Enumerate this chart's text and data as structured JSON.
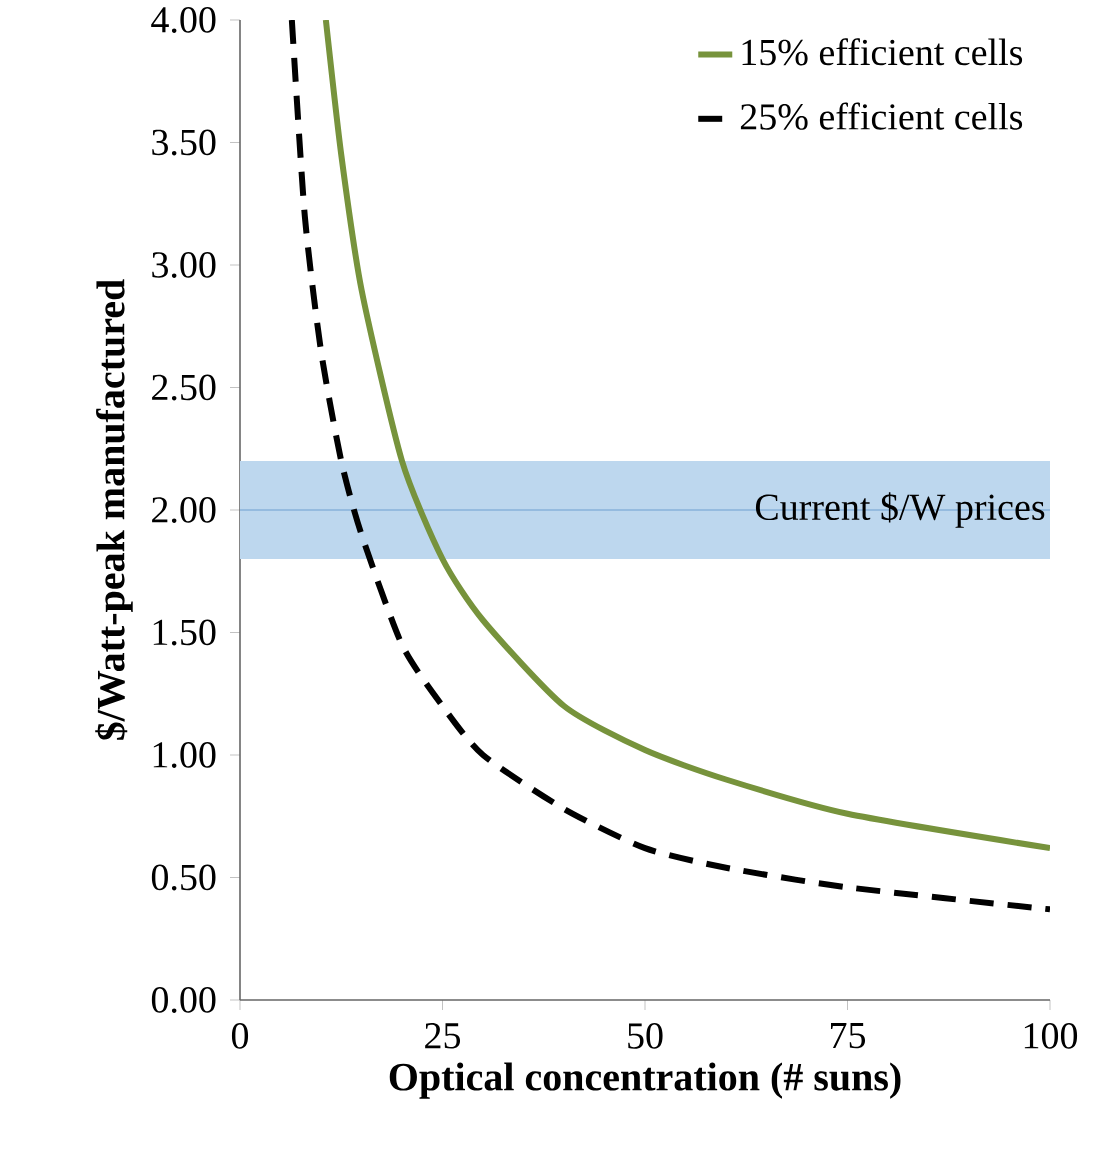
{
  "chart_data": {
    "type": "line",
    "xlabel": "Optical concentration (# suns)",
    "ylabel": "$/Watt-peak  manufactured",
    "xlim": [
      0,
      100
    ],
    "xticks": [
      0,
      25,
      50,
      75,
      100
    ],
    "ylim": [
      0,
      4
    ],
    "yticks": [
      {
        "value": 0,
        "label": "0.00"
      },
      {
        "value": 0.5,
        "label": "0.50"
      },
      {
        "value": 1,
        "label": "1.00"
      },
      {
        "value": 1.5,
        "label": "1.50"
      },
      {
        "value": 2,
        "label": "2.00"
      },
      {
        "value": 2.5,
        "label": "2.50"
      },
      {
        "value": 3,
        "label": "3.00"
      },
      {
        "value": 3.5,
        "label": "3.50"
      },
      {
        "value": 4,
        "label": "4.00"
      }
    ],
    "series": [
      {
        "name": "15% efficient cells",
        "color": "#77933c",
        "line_style": "solid",
        "x": [
          10.6,
          12.5,
          15,
          20,
          25,
          30,
          40,
          50,
          60,
          75,
          100
        ],
        "values": [
          4.0,
          3.45,
          2.9,
          2.2,
          1.8,
          1.55,
          1.2,
          1.02,
          0.9,
          0.76,
          0.62
        ]
      },
      {
        "name": "25% efficient cells",
        "color": "#000000",
        "line_style": "dashed",
        "x": [
          6.4,
          8,
          10,
          12.5,
          15,
          20,
          25,
          30,
          40,
          50,
          60,
          75,
          100
        ],
        "values": [
          4.0,
          3.2,
          2.65,
          2.2,
          1.9,
          1.45,
          1.2,
          1.0,
          0.78,
          0.62,
          0.54,
          0.46,
          0.37
        ]
      }
    ],
    "bands": [
      {
        "axis": "y",
        "from": 1.8,
        "to": 2.2,
        "label": "Current $/W prices",
        "color": "#bdd7ee"
      }
    ],
    "ref_lines": [
      {
        "axis": "y",
        "value": 2,
        "color": "#6f9fd0"
      }
    ],
    "legend": "top right",
    "grid": false,
    "marker": "none"
  }
}
